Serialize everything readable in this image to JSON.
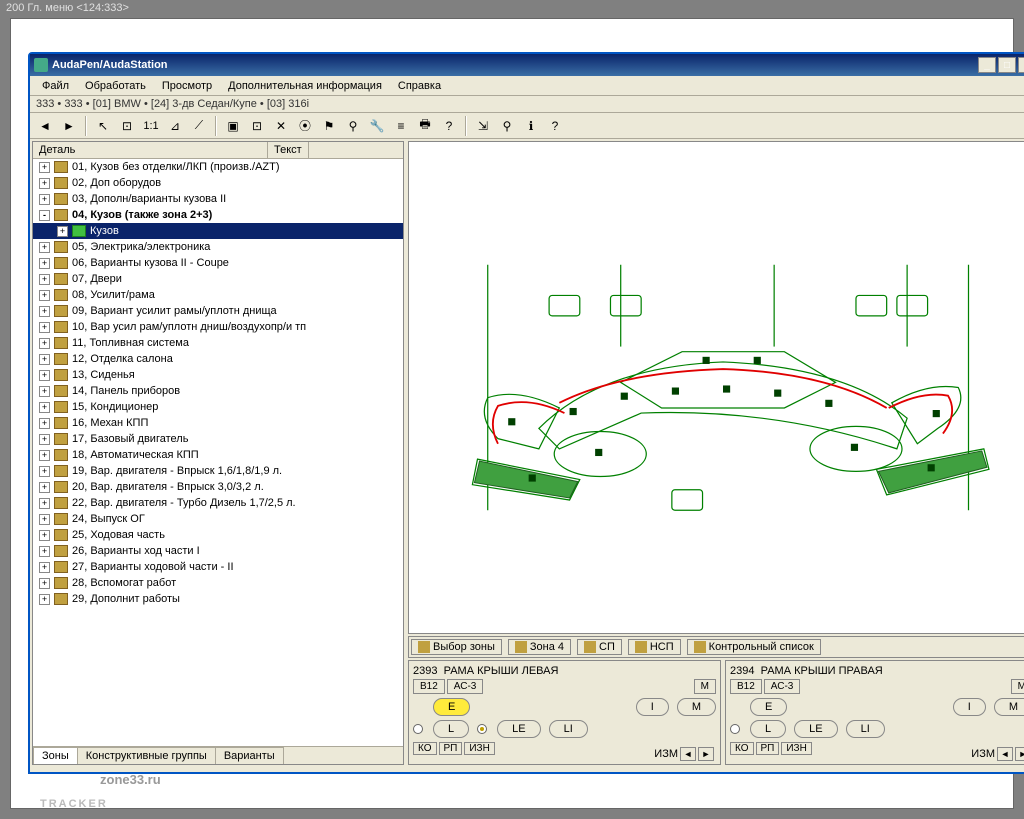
{
  "outer_title": "200 Гл. меню <124:333>",
  "window": {
    "title": "AudaPen/AudaStation",
    "buttons": {
      "min": "_",
      "max": "□",
      "close": "×"
    },
    "border_color": "#0055c4",
    "titlebar_gradient": [
      "#0a246a",
      "#3a6ea5"
    ]
  },
  "menu": [
    "Файл",
    "Обработать",
    "Просмотр",
    "Дополнительная информация",
    "Справка"
  ],
  "breadcrumb": "333 • 333 • [01] BMW • [24] 3-дв Седан/Купе • [03] 316i",
  "toolbar": {
    "groups": [
      [
        "◄",
        "►"
      ],
      [
        "↖",
        "⊡",
        "1:1",
        "⊿",
        "⟋"
      ],
      [
        "▣",
        "⊡",
        "✕",
        "⦿",
        "⚑",
        "⚲",
        "🔧",
        "≡",
        "🖶",
        "?"
      ],
      [
        "⇲",
        "⚲",
        "ℹ",
        "?"
      ]
    ]
  },
  "tree": {
    "headers": [
      "Деталь",
      "Текст"
    ],
    "items": [
      {
        "exp": "+",
        "label": "01, Кузов без отделки/ЛКП (произв./AZT)"
      },
      {
        "exp": "+",
        "label": "02, Доп оборудов"
      },
      {
        "exp": "+",
        "label": "03, Дополн/варианты кузова II"
      },
      {
        "exp": "-",
        "label": "04, Кузов (также зона 2+3)",
        "bold": true
      },
      {
        "exp": "+",
        "label": "Кузов",
        "indent": 1,
        "selected": true,
        "green": true
      },
      {
        "exp": "+",
        "label": "05, Электрика/электроника"
      },
      {
        "exp": "+",
        "label": "06, Варианты кузова II - Coupe"
      },
      {
        "exp": "+",
        "label": "07, Двери"
      },
      {
        "exp": "+",
        "label": "08, Усилит/рама"
      },
      {
        "exp": "+",
        "label": "09, Вариант усилит рамы/уплотн днища"
      },
      {
        "exp": "+",
        "label": "10, Вар усил рам/уплотн дниш/воздухопр/и тп"
      },
      {
        "exp": "+",
        "label": "11, Топливная система"
      },
      {
        "exp": "+",
        "label": "12, Отделка салона"
      },
      {
        "exp": "+",
        "label": "13, Сиденья"
      },
      {
        "exp": "+",
        "label": "14, Панель приборов"
      },
      {
        "exp": "+",
        "label": "15, Кондиционер"
      },
      {
        "exp": "+",
        "label": "16, Механ КПП"
      },
      {
        "exp": "+",
        "label": "17, Базовый двигатель"
      },
      {
        "exp": "+",
        "label": "18, Автоматическая КПП"
      },
      {
        "exp": "+",
        "label": "19, Вар. двигателя - Впрыск 1,6/1,8/1,9 л."
      },
      {
        "exp": "+",
        "label": "20, Вар. двигателя - Впрыск 3,0/3,2 л."
      },
      {
        "exp": "+",
        "label": "22, Вар. двигателя - Турбо Дизель 1,7/2,5 л."
      },
      {
        "exp": "+",
        "label": "24, Выпуск ОГ"
      },
      {
        "exp": "+",
        "label": "25, Ходовая часть"
      },
      {
        "exp": "+",
        "label": "26, Варианты ход части I"
      },
      {
        "exp": "+",
        "label": "27, Варианты ходовой части - II"
      },
      {
        "exp": "+",
        "label": "28, Вспомогат работ"
      },
      {
        "exp": "+",
        "label": "29, Дополнит работы"
      }
    ]
  },
  "left_tabs": [
    "Зоны",
    "Конструктивные группы",
    "Варианты"
  ],
  "active_left_tab": 0,
  "diagram": {
    "type": "exploded-parts-diagram",
    "background": "#ffffff",
    "outline_color": "#008000",
    "highlight_color": "#e00000",
    "fill_highlight": "#40a040",
    "marker_color": "#004000",
    "callout_boxes": 6,
    "approx_parts": 40
  },
  "zone_bar": {
    "buttons": [
      {
        "icon": true,
        "label": "Выбор зоны"
      },
      {
        "icon": true,
        "label": "Зона 4"
      },
      {
        "icon": true,
        "label": "СП"
      },
      {
        "icon": true,
        "label": "НСП"
      },
      {
        "icon": true,
        "label": "Контрольный список"
      }
    ]
  },
  "panels": [
    {
      "code": "2393",
      "title": "РАМА КРЫШИ ЛЕВАЯ",
      "tabs": [
        "В12",
        "АС-3"
      ],
      "row1_btns": [
        {
          "t": "E",
          "yellow": true
        }
      ],
      "row1_right": [
        "I",
        "M"
      ],
      "row2_btns": [
        "L",
        "LE",
        "LI"
      ],
      "small_tabs": [
        "КО",
        "РП",
        "ИЗН"
      ],
      "footer_label": "ИЗМ"
    },
    {
      "code": "2394",
      "title": "РАМА КРЫШИ ПРАВАЯ",
      "tabs": [
        "В12",
        "АС-3"
      ],
      "row1_btns": [
        {
          "t": "E",
          "yellow": false
        }
      ],
      "row1_right": [
        "I",
        "M"
      ],
      "row2_btns": [
        "L",
        "LE",
        "LI"
      ],
      "small_tabs": [
        "КО",
        "РП",
        "ИЗН"
      ],
      "footer_label": "ИЗМ"
    }
  ],
  "watermark": {
    "line1": "TRACKER",
    "line2": "zone33.ru"
  }
}
